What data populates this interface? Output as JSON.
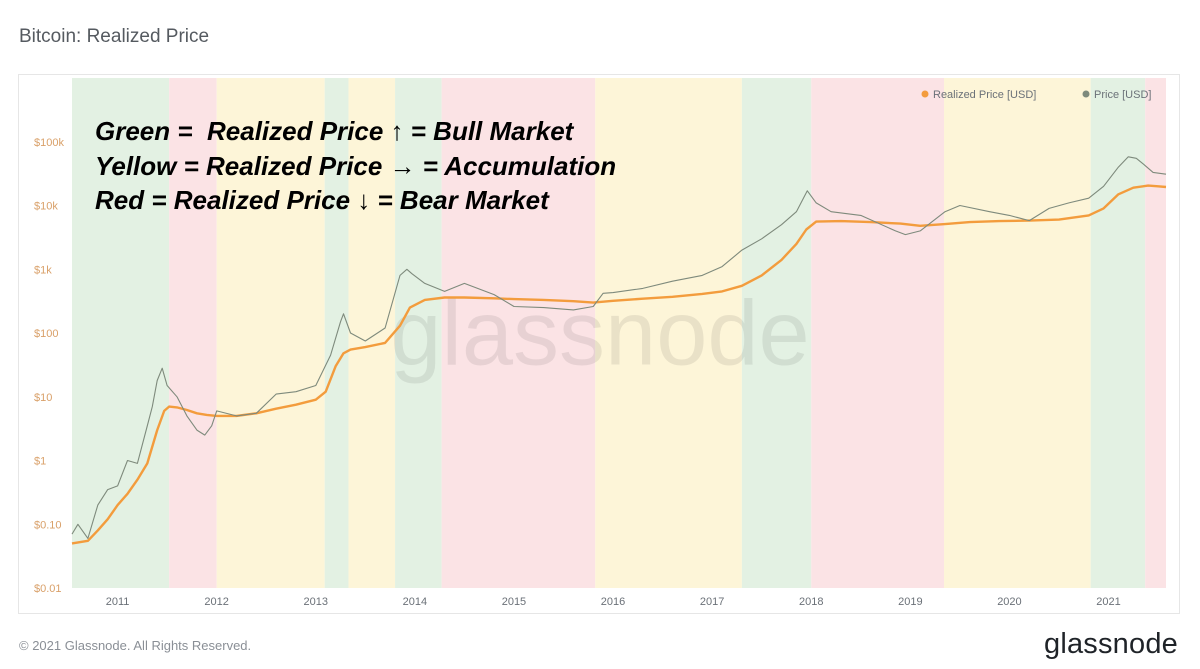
{
  "page": {
    "title": "Bitcoin: Realized Price",
    "copyright": "© 2021 Glassnode. All Rights Reserved.",
    "logo": "glassnode",
    "watermark": "glassnode"
  },
  "annotation": {
    "lines": [
      "Green =  Realized Price ↑ = Bull Market",
      "Yellow = Realized Price → = Accumulation",
      "Red = Realized Price ↓ = Bear Market"
    ]
  },
  "colors": {
    "realized": "#f39c3d",
    "price": "#7e8a7c",
    "bull": "#e3f1e3",
    "accumulation": "#fdf5d8",
    "bear": "#fbe3e5",
    "axis_text": "#d9a069",
    "x_axis_text": "#6b7178"
  },
  "chart_data": {
    "type": "line",
    "title": "Bitcoin: Realized Price",
    "y_scale": "log",
    "ylim": [
      0.01,
      1000000
    ],
    "y_ticks": [
      "$0.01",
      "$0.10",
      "$1",
      "$10",
      "$100",
      "$1k",
      "$10k",
      "$100k"
    ],
    "y_tick_values": [
      0.01,
      0.1,
      1,
      10,
      100,
      1000,
      10000,
      100000
    ],
    "x_ticks": [
      "2011",
      "2012",
      "2013",
      "2014",
      "2015",
      "2016",
      "2017",
      "2018",
      "2019",
      "2020",
      "2021"
    ],
    "x_tick_values": [
      2011,
      2012,
      2013,
      2014,
      2015,
      2016,
      2017,
      2018,
      2019,
      2020,
      2021
    ],
    "xlim": [
      2010.54,
      2021.58
    ],
    "legend": [
      "Realized Price [USD]",
      "Price [USD]"
    ],
    "legend_position": "top-right",
    "regimes": [
      {
        "start": 2010.54,
        "end": 2011.52,
        "type": "bull"
      },
      {
        "start": 2011.52,
        "end": 2012.0,
        "type": "bear"
      },
      {
        "start": 2012.0,
        "end": 2013.09,
        "type": "accumulation"
      },
      {
        "start": 2013.09,
        "end": 2013.33,
        "type": "bull"
      },
      {
        "start": 2013.33,
        "end": 2013.8,
        "type": "accumulation"
      },
      {
        "start": 2013.8,
        "end": 2014.27,
        "type": "bull"
      },
      {
        "start": 2014.27,
        "end": 2015.82,
        "type": "bear"
      },
      {
        "start": 2015.82,
        "end": 2017.3,
        "type": "accumulation"
      },
      {
        "start": 2017.3,
        "end": 2018.0,
        "type": "bull"
      },
      {
        "start": 2018.0,
        "end": 2019.34,
        "type": "bear"
      },
      {
        "start": 2019.34,
        "end": 2020.82,
        "type": "accumulation"
      },
      {
        "start": 2020.82,
        "end": 2021.37,
        "type": "bull"
      },
      {
        "start": 2021.37,
        "end": 2021.58,
        "type": "bear"
      }
    ],
    "series": [
      {
        "name": "Realized Price [USD]",
        "x": [
          2010.54,
          2010.7,
          2010.8,
          2010.9,
          2011.0,
          2011.1,
          2011.2,
          2011.3,
          2011.4,
          2011.47,
          2011.52,
          2011.6,
          2011.7,
          2011.8,
          2011.9,
          2012.0,
          2012.2,
          2012.4,
          2012.6,
          2012.8,
          2013.0,
          2013.1,
          2013.2,
          2013.28,
          2013.35,
          2013.5,
          2013.7,
          2013.85,
          2013.95,
          2014.1,
          2014.3,
          2014.5,
          2014.8,
          2015.0,
          2015.3,
          2015.6,
          2015.8,
          2016.0,
          2016.3,
          2016.6,
          2016.9,
          2017.1,
          2017.3,
          2017.5,
          2017.7,
          2017.85,
          2017.95,
          2018.05,
          2018.3,
          2018.6,
          2018.9,
          2019.1,
          2019.35,
          2019.6,
          2019.9,
          2020.2,
          2020.5,
          2020.8,
          2020.95,
          2021.1,
          2021.25,
          2021.4,
          2021.5,
          2021.58
        ],
        "y": [
          0.05,
          0.055,
          0.08,
          0.12,
          0.2,
          0.3,
          0.5,
          0.9,
          3,
          6,
          7,
          6.8,
          6.2,
          5.5,
          5.2,
          5.0,
          5.0,
          5.5,
          6.5,
          7.5,
          9,
          12,
          30,
          48,
          55,
          60,
          70,
          130,
          250,
          330,
          360,
          360,
          350,
          340,
          330,
          315,
          300,
          320,
          345,
          370,
          410,
          450,
          550,
          800,
          1400,
          2500,
          4200,
          5600,
          5700,
          5500,
          5200,
          4800,
          5100,
          5500,
          5700,
          5800,
          6000,
          7000,
          9000,
          15000,
          19000,
          20500,
          20000,
          19500
        ]
      },
      {
        "name": "Price [USD]",
        "x": [
          2010.54,
          2010.6,
          2010.7,
          2010.8,
          2010.9,
          2011.0,
          2011.1,
          2011.2,
          2011.3,
          2011.35,
          2011.4,
          2011.45,
          2011.5,
          2011.6,
          2011.7,
          2011.8,
          2011.88,
          2011.95,
          2012.0,
          2012.2,
          2012.4,
          2012.6,
          2012.8,
          2013.0,
          2013.15,
          2013.25,
          2013.28,
          2013.35,
          2013.5,
          2013.7,
          2013.85,
          2013.92,
          2013.97,
          2014.1,
          2014.3,
          2014.5,
          2014.8,
          2015.0,
          2015.3,
          2015.6,
          2015.8,
          2015.9,
          2016.0,
          2016.3,
          2016.6,
          2016.9,
          2017.1,
          2017.3,
          2017.5,
          2017.7,
          2017.85,
          2017.96,
          2018.05,
          2018.2,
          2018.5,
          2018.85,
          2018.95,
          2019.1,
          2019.35,
          2019.5,
          2019.8,
          2020.0,
          2020.2,
          2020.4,
          2020.6,
          2020.8,
          2020.95,
          2021.1,
          2021.2,
          2021.28,
          2021.35,
          2021.45,
          2021.58
        ],
        "y": [
          0.07,
          0.1,
          0.06,
          0.2,
          0.35,
          0.4,
          1.0,
          0.9,
          3.5,
          7,
          18,
          28,
          15,
          10,
          5,
          3,
          2.5,
          3.5,
          6,
          5,
          5.5,
          11,
          12,
          15,
          45,
          150,
          200,
          100,
          75,
          120,
          800,
          1000,
          850,
          600,
          450,
          600,
          400,
          260,
          250,
          230,
          260,
          420,
          430,
          500,
          650,
          800,
          1100,
          2000,
          3000,
          5000,
          8000,
          17000,
          11000,
          8000,
          7000,
          4000,
          3500,
          4000,
          8000,
          10000,
          8000,
          7000,
          5800,
          9000,
          11000,
          13000,
          20000,
          40000,
          58000,
          55000,
          45000,
          33000,
          31000
        ]
      }
    ]
  }
}
